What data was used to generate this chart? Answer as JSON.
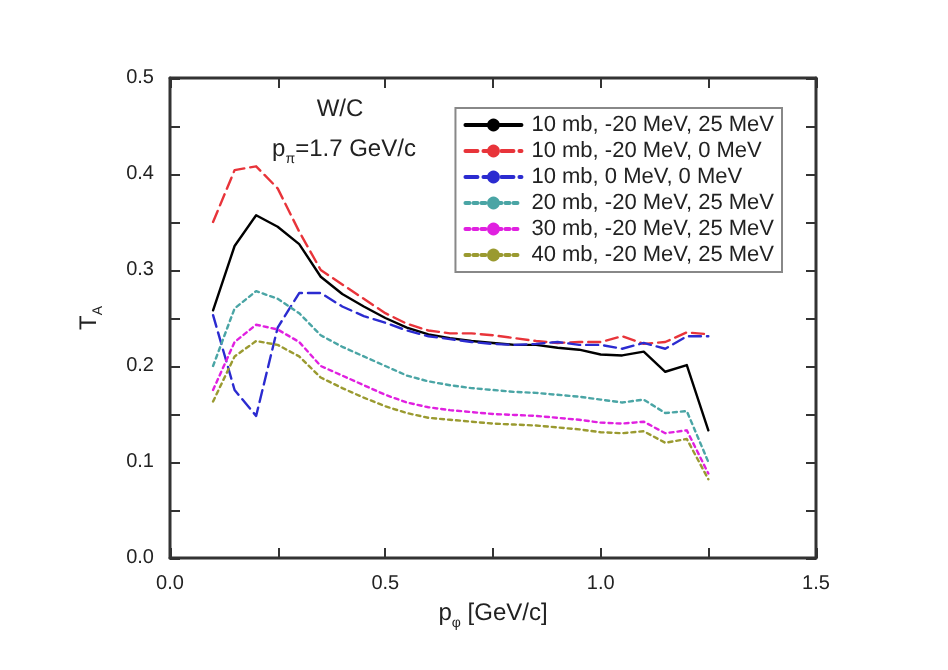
{
  "chart_data": {
    "type": "line",
    "xlabel": "p$_{φ}$ [GeV/c]",
    "ylabel": "T$_{A}$",
    "annotations": [
      "W/C",
      "p$_{π}$=1.7 GeV/c"
    ],
    "x": [
      0.1,
      0.15,
      0.2,
      0.25,
      0.3,
      0.35,
      0.4,
      0.45,
      0.5,
      0.55,
      0.6,
      0.65,
      0.7,
      0.75,
      0.8,
      0.85,
      0.9,
      0.95,
      1.0,
      1.05,
      1.1,
      1.15,
      1.2,
      1.25
    ],
    "series": [
      {
        "name": "10 mb, -20 MeV, 25 MeV",
        "color": "#000000",
        "line_style": "solid",
        "values": [
          0.258,
          0.325,
          0.357,
          0.345,
          0.327,
          0.293,
          0.275,
          0.262,
          0.25,
          0.24,
          0.233,
          0.229,
          0.226,
          0.224,
          0.222,
          0.222,
          0.219,
          0.217,
          0.212,
          0.211,
          0.215,
          0.194,
          0.201,
          0.133
        ]
      },
      {
        "name": "10 mb, -20 MeV, 0 MeV",
        "color": "#e8343a",
        "line_style": "dashed",
        "values": [
          0.35,
          0.404,
          0.408,
          0.385,
          0.34,
          0.3,
          0.285,
          0.27,
          0.255,
          0.244,
          0.237,
          0.234,
          0.234,
          0.232,
          0.229,
          0.226,
          0.224,
          0.225,
          0.225,
          0.231,
          0.223,
          0.225,
          0.235,
          0.233
        ]
      },
      {
        "name": "10 mb, 0 MeV, 0 MeV",
        "color": "#2b2bd0",
        "line_style": "dashed",
        "values": [
          0.253,
          0.175,
          0.148,
          0.24,
          0.276,
          0.276,
          0.262,
          0.252,
          0.245,
          0.237,
          0.231,
          0.228,
          0.225,
          0.223,
          0.222,
          0.223,
          0.225,
          0.222,
          0.222,
          0.218,
          0.224,
          0.218,
          0.231,
          0.231
        ]
      },
      {
        "name": "20 mb, -20 MeV, 25 MeV",
        "color": "#4aa5a5",
        "line_style": "dotted",
        "values": [
          0.2,
          0.26,
          0.278,
          0.27,
          0.255,
          0.232,
          0.22,
          0.21,
          0.2,
          0.19,
          0.184,
          0.18,
          0.177,
          0.175,
          0.173,
          0.172,
          0.17,
          0.168,
          0.165,
          0.162,
          0.165,
          0.151,
          0.153,
          0.1
        ]
      },
      {
        "name": "30 mb, -20 MeV, 25 MeV",
        "color": "#e020e0",
        "line_style": "dotted",
        "values": [
          0.175,
          0.225,
          0.243,
          0.238,
          0.225,
          0.2,
          0.19,
          0.18,
          0.17,
          0.162,
          0.157,
          0.154,
          0.152,
          0.15,
          0.149,
          0.148,
          0.146,
          0.144,
          0.141,
          0.14,
          0.142,
          0.13,
          0.133,
          0.088
        ]
      },
      {
        "name": "40 mb, -20 MeV, 25 MeV",
        "color": "#9a9a30",
        "line_style": "dotted",
        "values": [
          0.163,
          0.21,
          0.226,
          0.222,
          0.21,
          0.188,
          0.177,
          0.167,
          0.158,
          0.151,
          0.146,
          0.144,
          0.142,
          0.14,
          0.139,
          0.138,
          0.136,
          0.134,
          0.131,
          0.13,
          0.132,
          0.12,
          0.124,
          0.082
        ]
      }
    ],
    "xlim": [
      0,
      1.5
    ],
    "xticks": [
      {
        "value": 0,
        "label": "0.0"
      },
      {
        "value": 0.25,
        "label": null
      },
      {
        "value": 0.5,
        "label": "0.5"
      },
      {
        "value": 0.75,
        "label": null
      },
      {
        "value": 1,
        "label": "1.0"
      },
      {
        "value": 1.25,
        "label": null
      },
      {
        "value": 1.5,
        "label": "1.5"
      }
    ],
    "ylim": [
      0,
      0.5
    ],
    "yticks": [
      {
        "value": 0,
        "label": "0.0"
      },
      {
        "value": 0.05,
        "label": null
      },
      {
        "value": 0.1,
        "label": "0.1"
      },
      {
        "value": 0.15,
        "label": null
      },
      {
        "value": 0.2,
        "label": "0.2"
      },
      {
        "value": 0.25,
        "label": null
      },
      {
        "value": 0.3,
        "label": "0.3"
      },
      {
        "value": 0.35,
        "label": null
      },
      {
        "value": 0.4,
        "label": "0.4"
      },
      {
        "value": 0.45,
        "label": null
      },
      {
        "value": 0.5,
        "label": "0.5"
      }
    ],
    "grid": false,
    "legend": "top right",
    "marker": "none"
  }
}
